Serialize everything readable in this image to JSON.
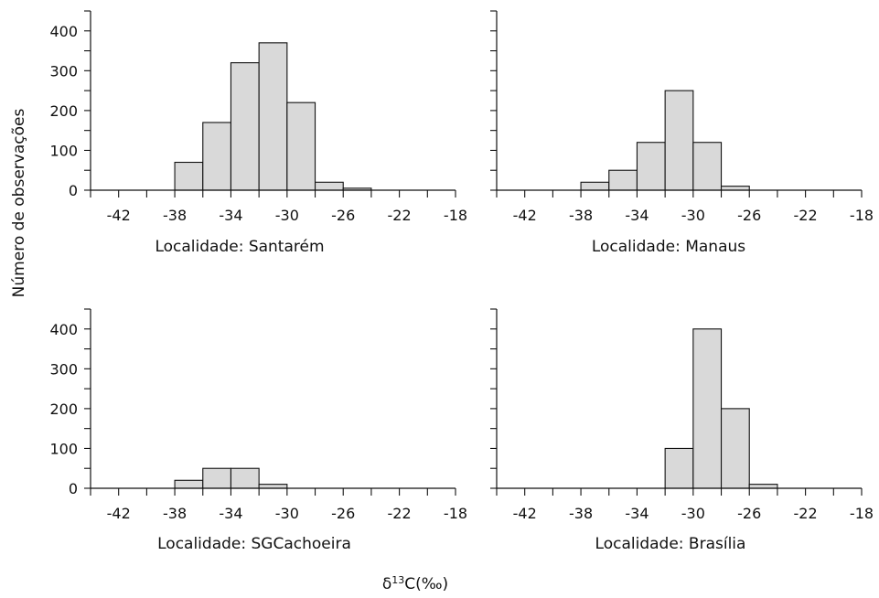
{
  "figure": {
    "y_axis_title": "Número de observações",
    "x_axis_title_prefix": "δ",
    "x_axis_title_sup": "13",
    "x_axis_title_suffix": "C(‰)"
  },
  "chart_data": [
    {
      "type": "bar",
      "title": "Localidade: Santarém",
      "bin_width": 2,
      "bins": [
        {
          "start": -38,
          "value": 70
        },
        {
          "start": -36,
          "value": 170
        },
        {
          "start": -34,
          "value": 320
        },
        {
          "start": -32,
          "value": 370
        },
        {
          "start": -30,
          "value": 220
        },
        {
          "start": -28,
          "value": 20
        },
        {
          "start": -26,
          "value": 5
        }
      ],
      "xlim": [
        -44,
        -18
      ],
      "ylim": [
        0,
        450
      ],
      "xticks": [
        -42,
        -38,
        -34,
        -30,
        -26,
        -22,
        -18
      ],
      "yticks": [
        0,
        100,
        200,
        300,
        400
      ],
      "show_y_labels": true
    },
    {
      "type": "bar",
      "title": "Localidade: Manaus",
      "bin_width": 2,
      "bins": [
        {
          "start": -38,
          "value": 20
        },
        {
          "start": -36,
          "value": 50
        },
        {
          "start": -34,
          "value": 120
        },
        {
          "start": -32,
          "value": 250
        },
        {
          "start": -30,
          "value": 120
        },
        {
          "start": -28,
          "value": 10
        }
      ],
      "xlim": [
        -44,
        -18
      ],
      "ylim": [
        0,
        450
      ],
      "xticks": [
        -42,
        -38,
        -34,
        -30,
        -26,
        -22,
        -18
      ],
      "yticks": [
        0,
        100,
        200,
        300,
        400
      ],
      "show_y_labels": false
    },
    {
      "type": "bar",
      "title": "Localidade: SGCachoeira",
      "bin_width": 2,
      "bins": [
        {
          "start": -38,
          "value": 20
        },
        {
          "start": -36,
          "value": 50
        },
        {
          "start": -34,
          "value": 50
        },
        {
          "start": -32,
          "value": 10
        }
      ],
      "xlim": [
        -44,
        -18
      ],
      "ylim": [
        0,
        450
      ],
      "xticks": [
        -42,
        -38,
        -34,
        -30,
        -26,
        -22,
        -18
      ],
      "yticks": [
        0,
        100,
        200,
        300,
        400
      ],
      "show_y_labels": true
    },
    {
      "type": "bar",
      "title": "Localidade: Brasília",
      "bin_width": 2,
      "bins": [
        {
          "start": -32,
          "value": 100
        },
        {
          "start": -30,
          "value": 400
        },
        {
          "start": -28,
          "value": 200
        },
        {
          "start": -26,
          "value": 10
        }
      ],
      "xlim": [
        -44,
        -18
      ],
      "ylim": [
        0,
        450
      ],
      "xticks": [
        -42,
        -38,
        -34,
        -30,
        -26,
        -22,
        -18
      ],
      "yticks": [
        0,
        100,
        200,
        300,
        400
      ],
      "show_y_labels": false
    }
  ]
}
